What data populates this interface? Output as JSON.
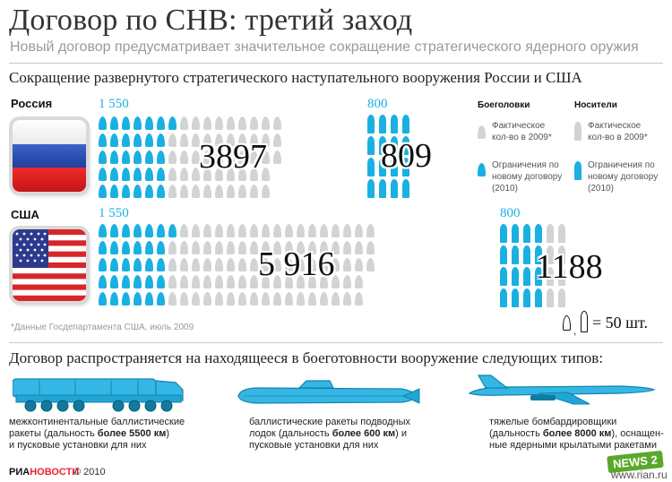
{
  "header": {
    "title": "Договор по СНВ: третий заход",
    "subtitle": "Новый договор предусматривает значительное сокращение стратегического ядерного оружия"
  },
  "section1": {
    "title": "Сокращение развернутого стратегического наступательного вооружения России и США"
  },
  "russia": {
    "label": "Россия",
    "warheads_limit": "1 550",
    "warheads_actual": "3897",
    "carriers_limit": "800",
    "carriers_actual": "809"
  },
  "usa": {
    "label": "США",
    "warheads_limit": "1 550",
    "warheads_actual": "5 916",
    "carriers_limit": "800",
    "carriers_actual": "1188"
  },
  "legend": {
    "warheads_header": "Боеголовки",
    "carriers_header": "Носители",
    "actual_text": "Фактическое кол-во в 2009*",
    "limit_text": "Ограничения по новому договору (2010)"
  },
  "footnote": "*Данные Госдепартамента США, июль 2009",
  "scale": "= 50 шт.",
  "colors": {
    "limit": "#1ab0e2",
    "actual": "#d2d4d4"
  },
  "section2": {
    "title": "Договор распространяется на находящееся в боеготовности вооружение следующих типов:"
  },
  "weapons": {
    "icbm": {
      "icon": "missile-launcher-truck",
      "l1": "межконтинентальные баллистические",
      "l2a": "ракеты (дальность ",
      "l2b": "более 5500 км",
      "l2c": ")",
      "l3": "и пусковые установки для них"
    },
    "slbm": {
      "icon": "submarine",
      "l1": "баллистические ракеты подводных",
      "l2a": "лодок (дальность ",
      "l2b": "более 600 км",
      "l2c": ") и",
      "l3": "пусковые установки для них"
    },
    "bomber": {
      "icon": "strategic-bomber",
      "l1": "тяжелые бомбардировщики",
      "l2a": "(дальность ",
      "l2b": "более 8000 км",
      "l2c": "), оснащен-",
      "l3": "ные ядерными крылатыми ракетами"
    }
  },
  "footer": {
    "brand_ria": "РИА",
    "brand_novosti": "НОВОСТИ",
    "copyright": "© 2010",
    "badge": "NEWS 2",
    "url": "www.rian.ru"
  }
}
